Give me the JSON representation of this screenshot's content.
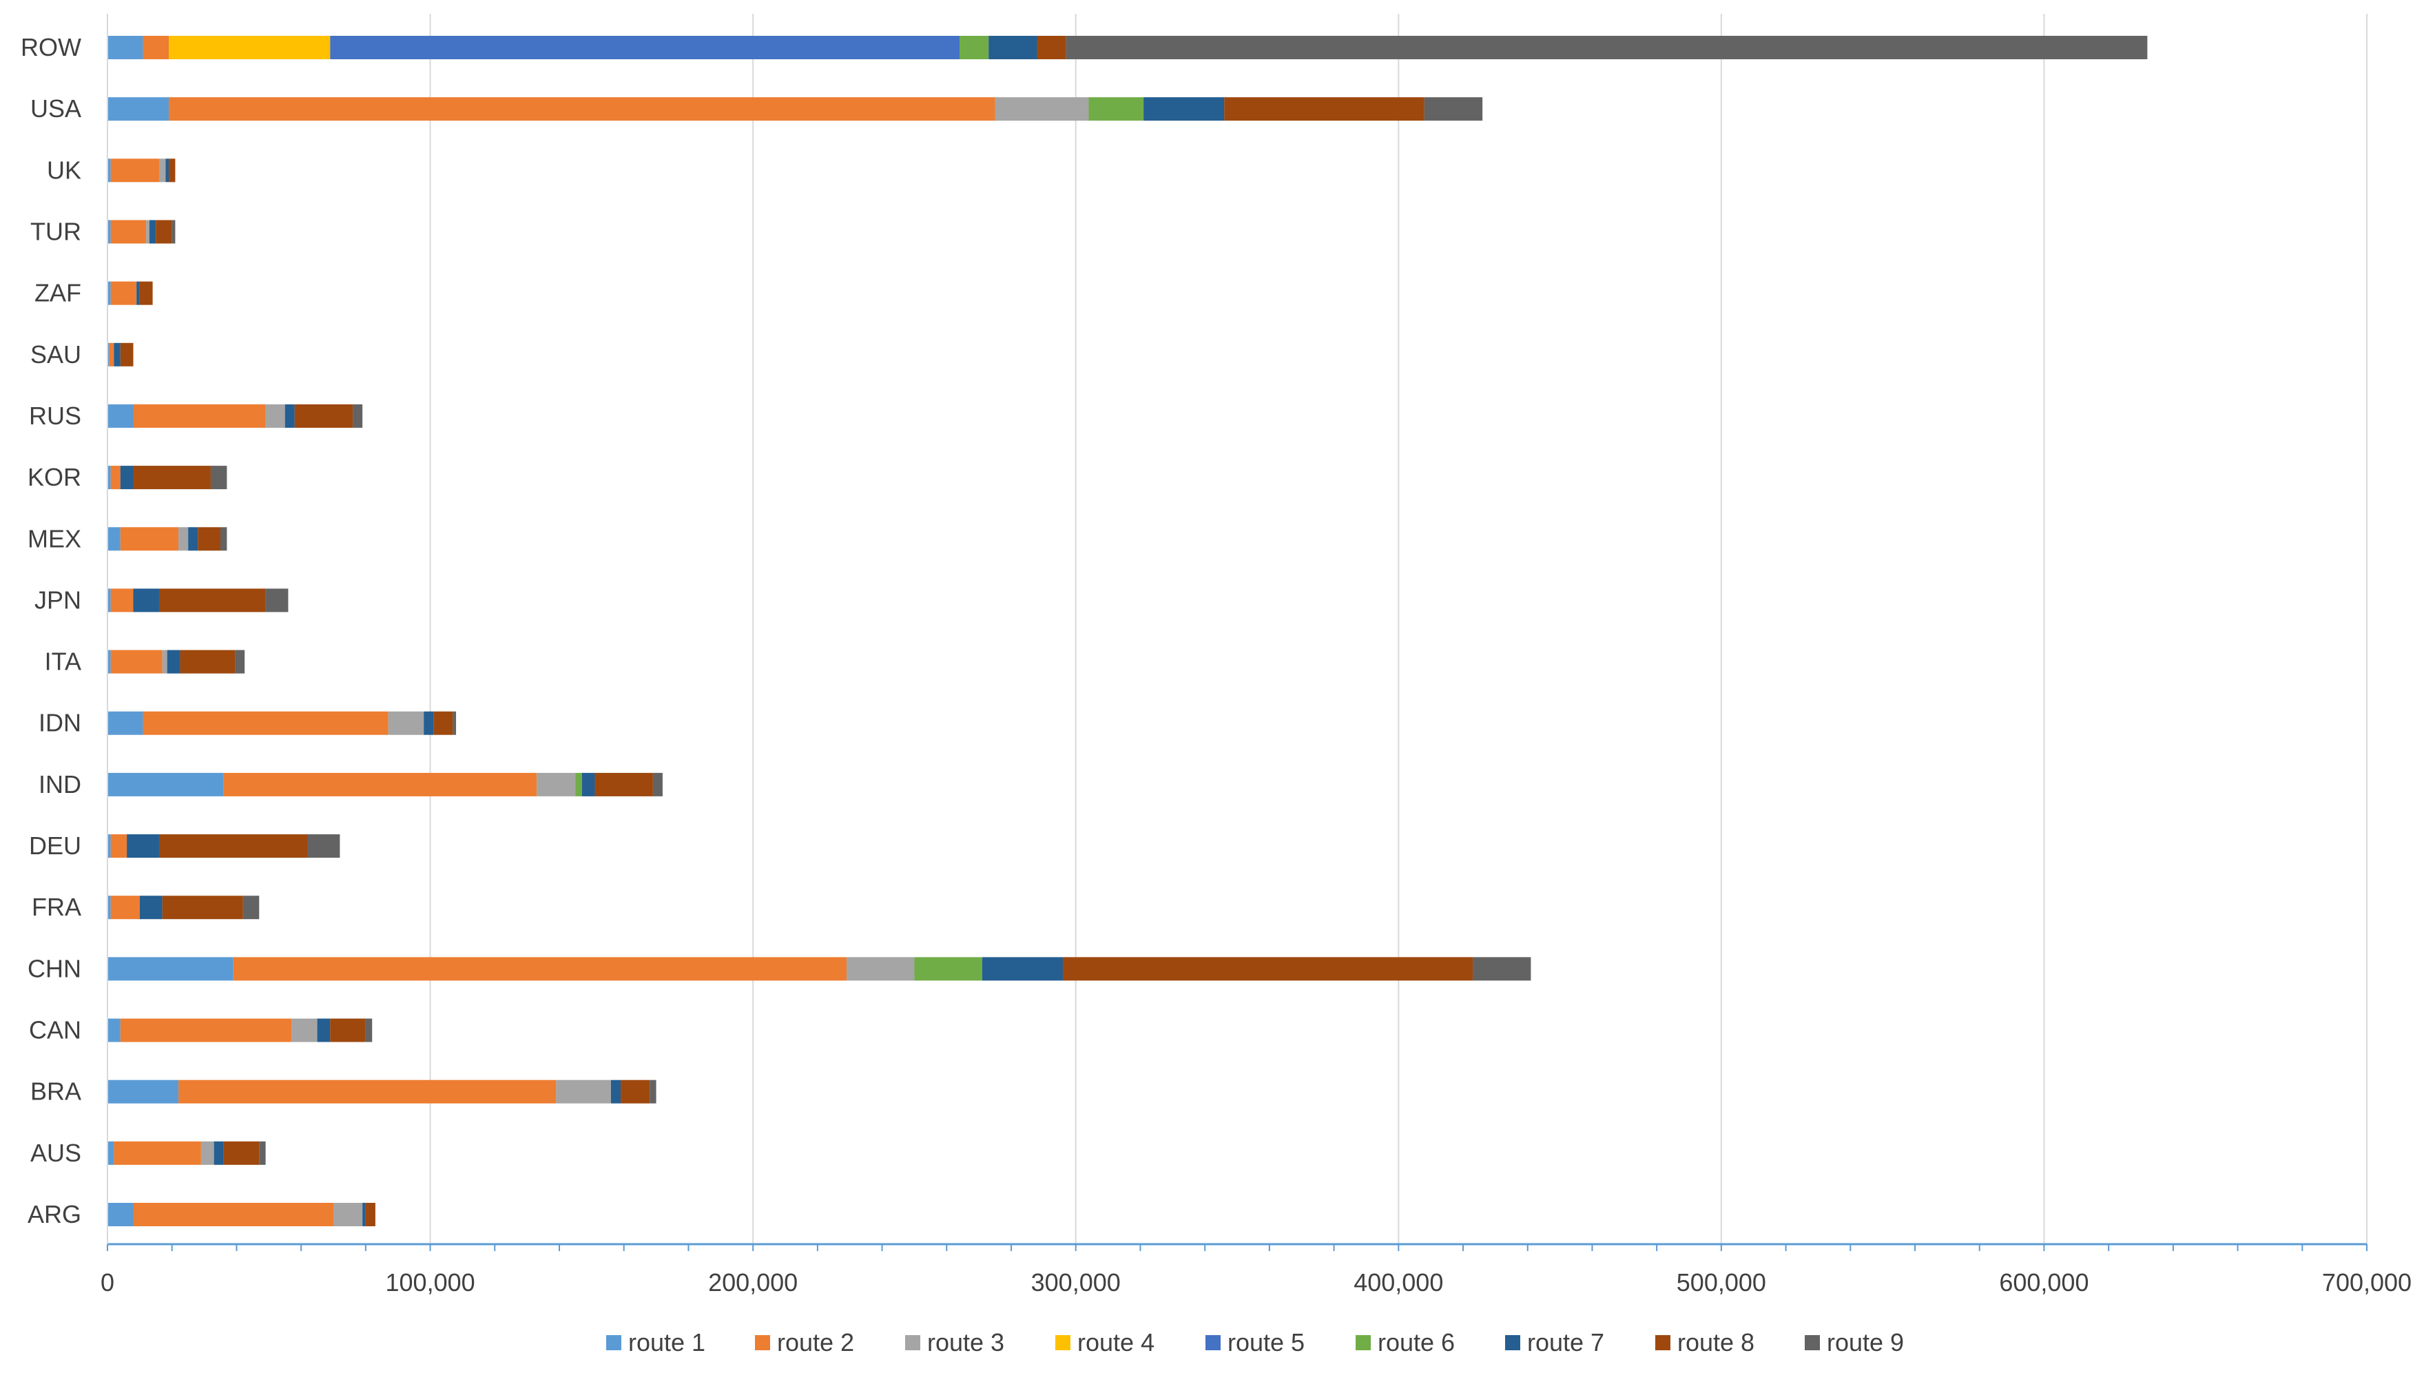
{
  "chart_data": {
    "type": "bar",
    "orientation": "horizontal",
    "stacked": true,
    "title": "",
    "xlabel": "",
    "ylabel": "",
    "xlim": [
      0,
      700000
    ],
    "x_ticks": [
      0,
      100000,
      200000,
      300000,
      400000,
      500000,
      600000,
      700000
    ],
    "x_tick_labels": [
      "0",
      "100,000",
      "200,000",
      "300,000",
      "400,000",
      "500,000",
      "600,000",
      "700,000"
    ],
    "grid": "vertical",
    "legend_position": "bottom",
    "categories": [
      "ARG",
      "AUS",
      "BRA",
      "CAN",
      "CHN",
      "FRA",
      "DEU",
      "IND",
      "IDN",
      "ITA",
      "JPN",
      "MEX",
      "KOR",
      "RUS",
      "SAU",
      "ZAF",
      "TUR",
      "UK",
      "USA",
      "ROW"
    ],
    "series": [
      {
        "name": "route 1",
        "color": "#5B9BD5",
        "values": [
          8000,
          2000,
          22000,
          4000,
          39000,
          1000,
          1000,
          36000,
          11000,
          1000,
          1000,
          4000,
          1000,
          8000,
          500,
          1000,
          1000,
          1000,
          19000,
          11000
        ]
      },
      {
        "name": "route 2",
        "color": "#ED7D31",
        "values": [
          62000,
          27000,
          117000,
          53000,
          190000,
          9000,
          5000,
          97000,
          76000,
          16000,
          7000,
          18000,
          3000,
          41000,
          1500,
          8000,
          11000,
          15000,
          256000,
          8000
        ]
      },
      {
        "name": "route 3",
        "color": "#A5A5A5",
        "values": [
          9000,
          4000,
          17000,
          8000,
          21000,
          0,
          0,
          12000,
          11000,
          1500,
          0,
          3000,
          0,
          6000,
          0,
          0,
          1000,
          2000,
          29000,
          0
        ]
      },
      {
        "name": "route 4",
        "color": "#FFC000",
        "values": [
          0,
          0,
          0,
          0,
          0,
          0,
          0,
          0,
          0,
          0,
          0,
          0,
          0,
          0,
          0,
          0,
          0,
          0,
          0,
          50000
        ]
      },
      {
        "name": "route 5",
        "color": "#4472C4",
        "values": [
          0,
          0,
          0,
          0,
          0,
          0,
          0,
          0,
          0,
          0,
          0,
          0,
          0,
          0,
          0,
          0,
          0,
          0,
          0,
          195000
        ]
      },
      {
        "name": "route 6",
        "color": "#70AD47",
        "values": [
          0,
          0,
          0,
          0,
          21000,
          0,
          0,
          2000,
          0,
          0,
          0,
          0,
          0,
          0,
          0,
          0,
          0,
          0,
          17000,
          9000
        ]
      },
      {
        "name": "route 7",
        "color": "#255E91",
        "values": [
          1000,
          3000,
          3000,
          4000,
          25000,
          7000,
          10000,
          4000,
          3000,
          4000,
          8000,
          3000,
          4000,
          3000,
          2000,
          1000,
          2000,
          1000,
          25000,
          15000
        ]
      },
      {
        "name": "route 8",
        "color": "#9E480E",
        "values": [
          3000,
          11000,
          9000,
          11000,
          127000,
          25000,
          46000,
          18000,
          6000,
          17000,
          33000,
          7000,
          24000,
          18000,
          4000,
          4000,
          5000,
          2000,
          62000,
          9000
        ]
      },
      {
        "name": "route 9",
        "color": "#636363",
        "values": [
          0,
          2000,
          2000,
          2000,
          18000,
          5000,
          10000,
          3000,
          1000,
          3000,
          7000,
          2000,
          5000,
          3000,
          0,
          0,
          1000,
          0,
          18000,
          335000
        ]
      }
    ]
  }
}
